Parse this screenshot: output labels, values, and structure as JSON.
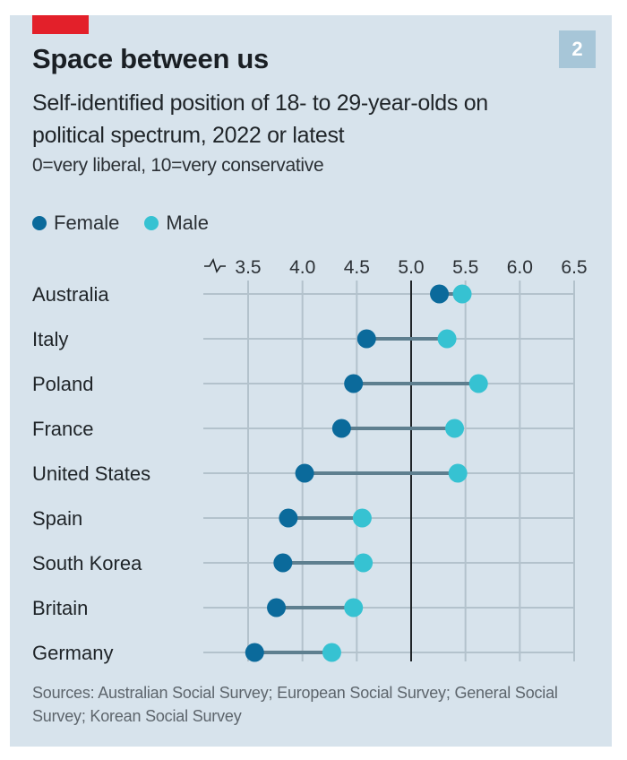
{
  "header": {
    "title": "Space between us",
    "subtitle": "Self-identified position of 18- to 29-year-olds on political spectrum, 2022 or latest",
    "note": "0=very liberal, 10=very conservative",
    "badge": "2"
  },
  "legend": [
    {
      "label": "Female",
      "color": "#0b6a9b"
    },
    {
      "label": "Male",
      "color": "#36c2d2"
    }
  ],
  "footer": {
    "sources": "Sources: Australian Social Survey; European Social Survey; General Social Survey; Korean Social Survey"
  },
  "colors": {
    "female": "#0b6a9b",
    "male": "#36c2d2",
    "connector": "#5e7f8f",
    "background": "#d7e3ec",
    "accent": "#e3202a",
    "badge": "#a7c6d8"
  },
  "chart_data": {
    "type": "dumbbell",
    "title": "Space between us",
    "subtitle": "Self-identified position of 18- to 29-year-olds on political spectrum, 2022 or latest",
    "xlabel": "0=very liberal, 10=very conservative",
    "ylabel": "",
    "xlim": [
      3.5,
      6.5
    ],
    "x_ticks": [
      "3.5",
      "4.0",
      "4.5",
      "5.0",
      "5.5",
      "6.0",
      "6.5"
    ],
    "x_tick_values": [
      3.5,
      4.0,
      4.5,
      5.0,
      5.5,
      6.0,
      6.5
    ],
    "axis_break": true,
    "reference_line": 5.0,
    "grid": true,
    "legend_position": "top-left",
    "categories": [
      "Australia",
      "Italy",
      "Poland",
      "France",
      "United States",
      "Spain",
      "South Korea",
      "Britain",
      "Germany"
    ],
    "series": [
      {
        "name": "Female",
        "values": [
          5.26,
          4.59,
          4.47,
          4.36,
          4.02,
          3.87,
          3.82,
          3.76,
          3.56
        ]
      },
      {
        "name": "Male",
        "values": [
          5.47,
          5.33,
          5.62,
          5.4,
          5.43,
          4.55,
          4.56,
          4.47,
          4.27
        ]
      }
    ]
  }
}
